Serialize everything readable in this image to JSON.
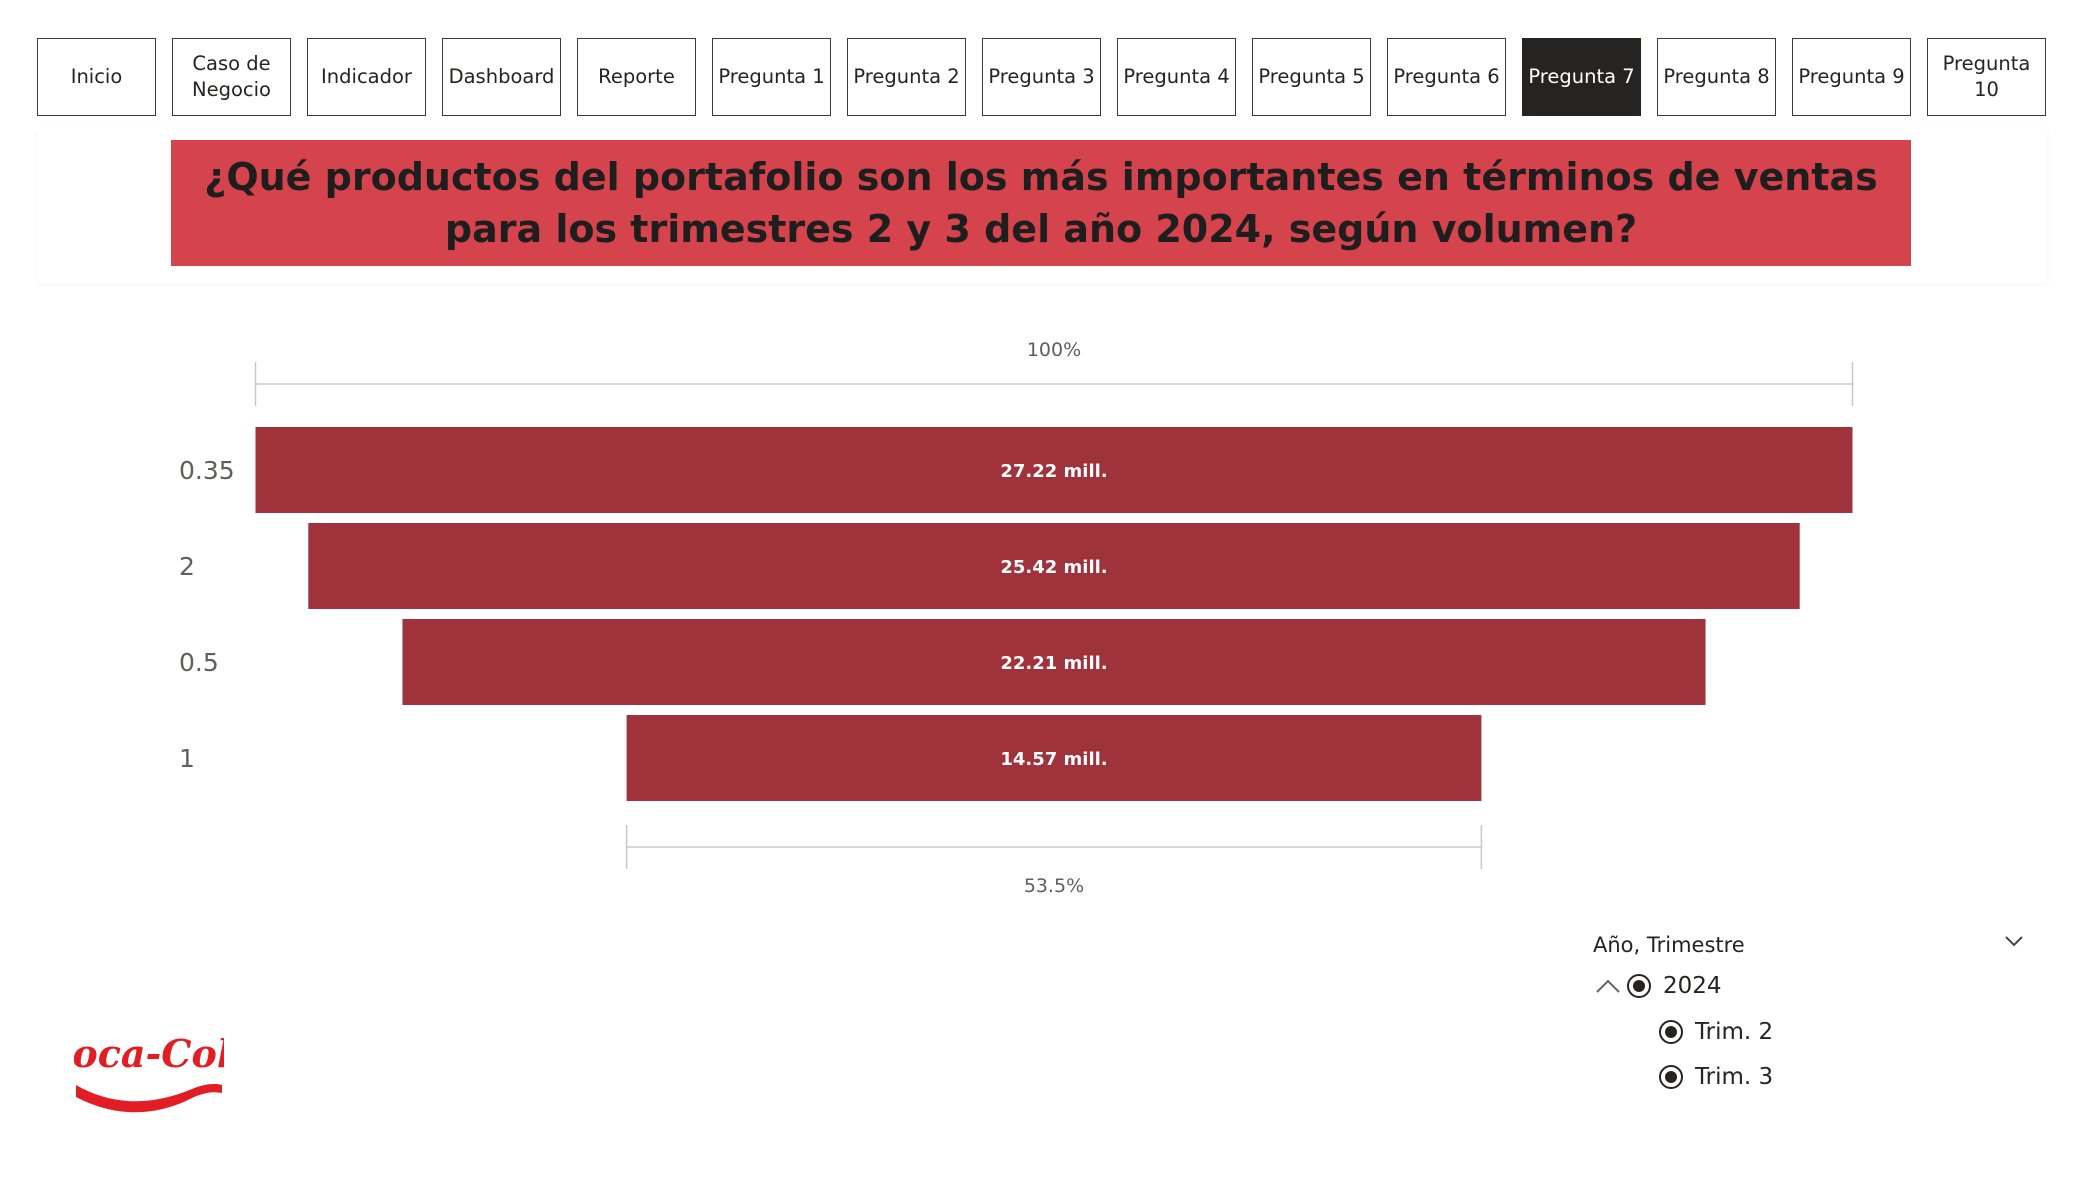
{
  "nav": {
    "buttons": [
      {
        "label": "Inicio"
      },
      {
        "label": "Caso de\nNegocio"
      },
      {
        "label": "Indicador"
      },
      {
        "label": "Dashboard"
      },
      {
        "label": "Reporte"
      },
      {
        "label": "Pregunta 1"
      },
      {
        "label": "Pregunta 2"
      },
      {
        "label": "Pregunta 3"
      },
      {
        "label": "Pregunta 4"
      },
      {
        "label": "Pregunta 5"
      },
      {
        "label": "Pregunta 6"
      },
      {
        "label": "Pregunta 7",
        "active": true
      },
      {
        "label": "Pregunta 8"
      },
      {
        "label": "Pregunta 9"
      },
      {
        "label": "Pregunta 10"
      }
    ]
  },
  "title": "¿Qué productos del portafolio son los más importantes en términos de ventas para los trimestres  2 y 3 del año 2024, según volumen?",
  "chart_data": {
    "type": "funnel",
    "categories": [
      "0.35",
      "2",
      "0.5",
      "1"
    ],
    "values": [
      27.22,
      25.42,
      22.21,
      14.57
    ],
    "value_labels": [
      "27.22 mill.",
      "25.42 mill.",
      "22.21 mill.",
      "14.57 mill."
    ],
    "top_annotation": "100%",
    "bottom_annotation": "53.5%",
    "bar_color": "#a0323c"
  },
  "slicer": {
    "header": "Año, Trimestre",
    "year": "2024",
    "quarters": [
      "Trim. 2",
      "Trim. 3"
    ]
  },
  "logo": {
    "text": "Coca-Cola",
    "color": "#e21d24"
  },
  "colors": {
    "banner": "#d5434d",
    "active_nav": "#252423"
  }
}
